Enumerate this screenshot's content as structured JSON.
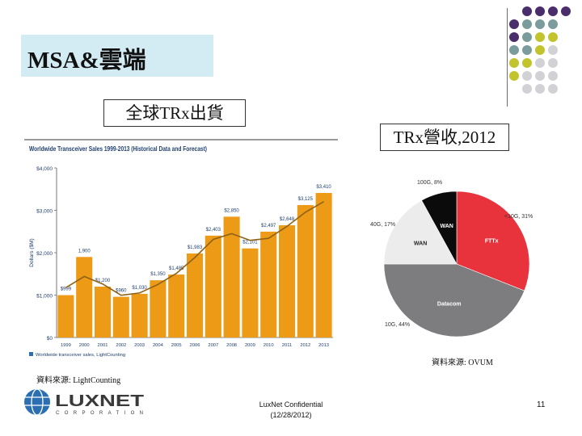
{
  "slide": {
    "title": "MSA&雲端",
    "left_label": "全球TRx出貨",
    "right_label": "TRx營收,2012",
    "source_left": "資料來源: LightCounting",
    "source_right": "資料來源: OVUM",
    "confidential_line1": "LuxNet Confidential",
    "confidential_line2": "(12/28/2012)",
    "page_number": "11"
  },
  "logo": {
    "name": "LUXNET",
    "sub": "CORPORATION",
    "icon": "globe-icon",
    "colors": {
      "primary": "#2b6fb0",
      "dark": "#1f3f6e",
      "text": "#3a3a3a"
    }
  },
  "decoration": {
    "dot_colors": {
      "purple": "#4a2d6b",
      "teal": "#7a9c9c",
      "lime": "#c2c42f",
      "gray": "#d2d2d6"
    }
  },
  "chart_data": [
    {
      "type": "bar",
      "title": "Worldwide Transceiver Sales 1999-2013 (Historical Data and Forecast)",
      "ylabel": "Dollars ($M)",
      "legend": "Worldwide transceiver sales, LightCounting",
      "categories": [
        "1999",
        "2000",
        "2001",
        "2002",
        "2003",
        "2004",
        "2005",
        "2006",
        "2007",
        "2008",
        "2009",
        "2010",
        "2011",
        "2012",
        "2013"
      ],
      "values": [
        999,
        1900,
        1200,
        960,
        1030,
        1350,
        1485,
        1983,
        2403,
        2850,
        2101,
        2497,
        2648,
        3125,
        3410
      ],
      "value_labels": [
        "$999",
        "1,900",
        "$1,200",
        "$960",
        "$1,030",
        "$1,350",
        "$1,485",
        "$1,983",
        "$2,403",
        "$2,850",
        "$2,101",
        "$2,497",
        "$2,648",
        "$3,125",
        "$3,410"
      ],
      "ylim": [
        0,
        4000
      ],
      "yticks": [
        0,
        1000,
        2000,
        3000,
        4000
      ],
      "ytick_labels": [
        "$0",
        "$1,000",
        "$2,000",
        "$3,000",
        "$4,000"
      ],
      "colors": {
        "bar": "#ed9a17",
        "trend": "#8e6216",
        "text": "#1f3f6e"
      }
    },
    {
      "type": "pie",
      "slices": [
        {
          "label": "<10G, 31%",
          "inner": "FTTx",
          "value": 31,
          "color": "#e8323c"
        },
        {
          "label": "10G, 44%",
          "inner": "Datacom",
          "value": 44,
          "color": "#7d7d80"
        },
        {
          "label": "40G, 17%",
          "inner": "WAN",
          "value": 17,
          "color": "#ececec"
        },
        {
          "label": "100G, 8%",
          "inner": "WAN",
          "value": 8,
          "color": "#0b0b0b"
        }
      ]
    }
  ]
}
